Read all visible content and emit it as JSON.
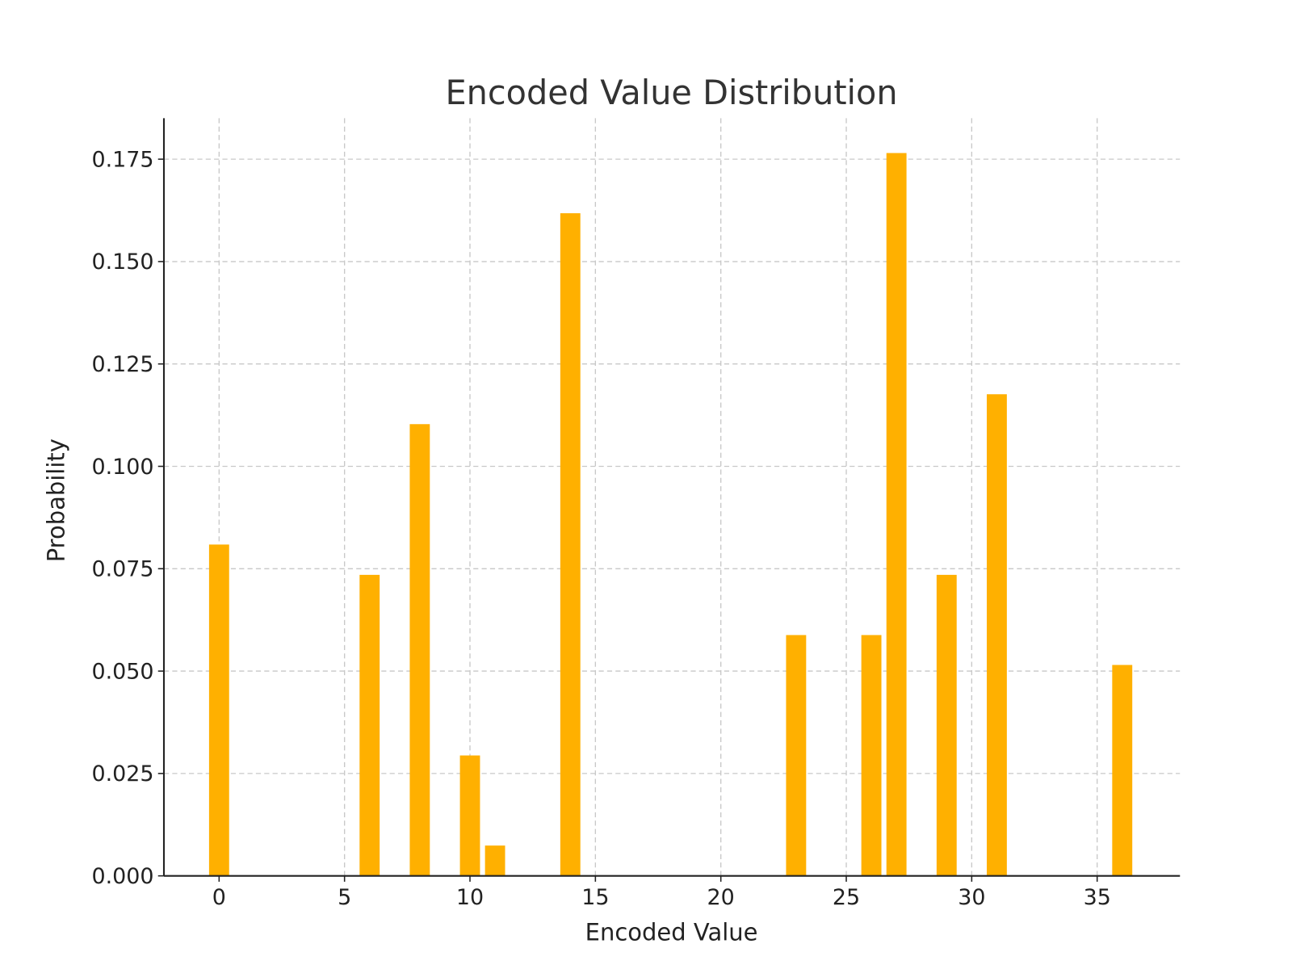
{
  "chart_data": {
    "type": "bar",
    "title": "Encoded Value Distribution",
    "xlabel": "Encoded Value",
    "ylabel": "Probability",
    "categories": [
      0,
      6,
      8,
      10,
      11,
      14,
      23,
      26,
      27,
      29,
      31,
      36
    ],
    "values": [
      0.0809,
      0.0735,
      0.1103,
      0.0294,
      0.0074,
      0.1618,
      0.0588,
      0.0588,
      0.1765,
      0.0735,
      0.1176,
      0.0515
    ],
    "xlim": [
      -2.2,
      38.3
    ],
    "ylim": [
      0,
      0.185
    ],
    "xticks": [
      0,
      5,
      10,
      15,
      20,
      25,
      30,
      35
    ],
    "yticks": [
      "0.000",
      "0.025",
      "0.050",
      "0.075",
      "0.100",
      "0.125",
      "0.150",
      "0.175"
    ],
    "grid": true,
    "bar_color": "#FFB000"
  }
}
